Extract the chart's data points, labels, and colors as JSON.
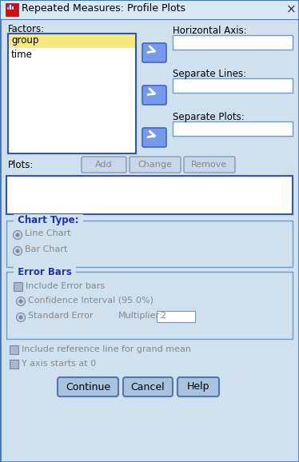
{
  "title": "Repeated Measures: Profile Plots",
  "bg_color": "#cfe0ef",
  "factors_label": "Factors:",
  "factors_items": [
    "group",
    "time"
  ],
  "selected_bg": "#f5e87c",
  "listbox_bg": "#ffffff",
  "listbox_border": "#3355aa",
  "horiz_axis_label": "Horizontal Axis:",
  "sep_lines_label": "Separate Lines:",
  "sep_plots_label": "Separate Plots:",
  "plots_label": "Plots:",
  "add_btn": "Add",
  "change_btn": "Change",
  "remove_btn": "Remove",
  "chart_type_label": "Chart Type:",
  "line_chart_label": "Line Chart",
  "bar_chart_label": "Bar Chart",
  "error_bars_label": "Error Bars",
  "include_error_label": "Include Error bars",
  "confidence_label": "Confidence Interval (95.0%)",
  "std_error_label": "Standard Error",
  "multiplier_label": "Multiplier:",
  "multiplier_val": "2",
  "ref_line_label": "Include reference line for grand mean",
  "y_axis_label": "Y axis starts at 0",
  "continue_btn": "Continue",
  "cancel_btn": "Cancel",
  "help_btn": "Help",
  "arrow_btn_face": "#7799ee",
  "arrow_btn_edge": "#4466bb",
  "section_title_color": "#2233aa",
  "text_color": "#000000",
  "disabled_text_color": "#888888",
  "input_bg": "#ffffff",
  "input_border": "#7799bb",
  "section_border": "#7799bb",
  "titlebar_bg": "#d8e8f4",
  "titlebar_border": "#4477bb",
  "outer_border": "#4477bb",
  "btn_face": "#b8d0e8",
  "btn_face_action": "#a8c4e0",
  "btn_edge": "#6688aa",
  "radio_face": "#b0bcd0",
  "radio_edge": "#7788aa",
  "check_face": "#a8b8c8",
  "check_edge": "#7788aa"
}
